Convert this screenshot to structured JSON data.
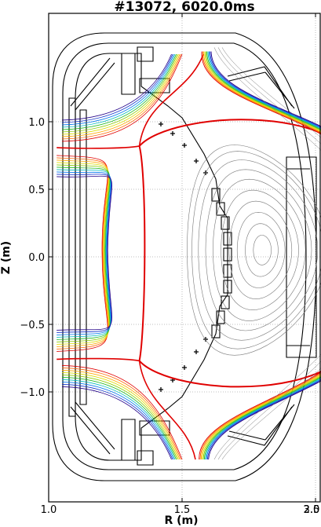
{
  "chart_data": {
    "type": "line",
    "title": "#13072,  6020.0ms",
    "xlabel": "R (m)",
    "ylabel": "Z (m)",
    "xlim": [
      1.0,
      3.05
    ],
    "ylim": [
      -1.6,
      1.75
    ],
    "xticks": [
      "1.0",
      "1.5",
      "2.0",
      "2.5",
      "3.0"
    ],
    "yticks": [
      "1.0",
      "0.5",
      "0.0",
      "−0.5",
      "−1.0"
    ],
    "xtick_values": [
      1.0,
      1.5,
      2.0,
      2.5,
      3.0
    ],
    "ytick_values": [
      1.0,
      0.5,
      0.0,
      -0.5,
      -1.0
    ],
    "grid": true,
    "magnetic_axis": {
      "R": 1.78,
      "Z": 0.05
    },
    "separatrix": {
      "color": "#e00000",
      "x_points": [
        {
          "R": 1.34,
          "Z": 0.82
        },
        {
          "R": 1.34,
          "Z": -0.77
        }
      ],
      "outer_midplane_R": 2.24,
      "top_Z": 0.82,
      "bottom_Z": -0.77
    },
    "flux_surface_colors": [
      "#e00000",
      "#ff6600",
      "#ffaa00",
      "#dddd00",
      "#88cc00",
      "#22bb22",
      "#00bbbb",
      "#0077ee",
      "#1133cc",
      "#220088"
    ],
    "colors": {
      "grid": "#aaaaaa",
      "vessel": "#000000",
      "closed_surfaces": "#777777"
    }
  }
}
